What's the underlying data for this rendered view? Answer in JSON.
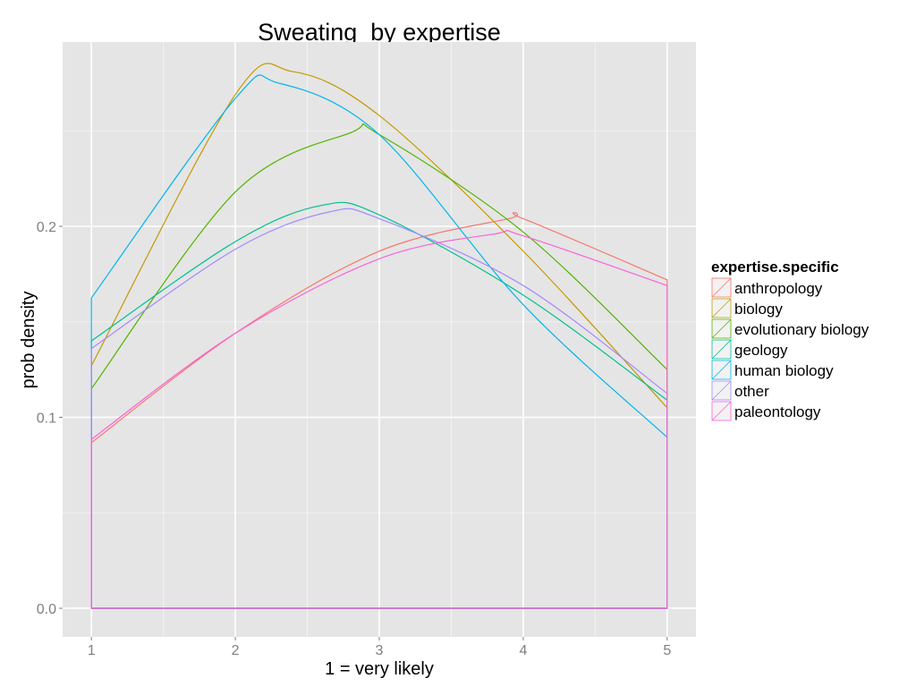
{
  "chart_data": {
    "type": "line",
    "title": "Sweating  by expertise",
    "xlabel": "1 = very likely",
    "ylabel": "prob density",
    "xlim": [
      0.8,
      5.2
    ],
    "ylim": [
      -0.015,
      0.2965
    ],
    "x_ticks": [
      1,
      2,
      3,
      4,
      5
    ],
    "x_tick_labels": [
      "1",
      "2",
      "3",
      "4",
      "5"
    ],
    "y_ticks": [
      0.0,
      0.1,
      0.2
    ],
    "y_tick_labels": [
      "0.0",
      "0.1",
      "0.2"
    ],
    "grid": true,
    "legend_title": "expertise.specific",
    "legend_position": "right",
    "series": [
      {
        "name": "anthropology",
        "color": "#F8766D",
        "x": [
          1,
          2,
          3,
          3.9,
          4,
          5
        ],
        "y": [
          0.0867,
          0.144,
          0.187,
          0.204,
          0.204,
          0.172
        ]
      },
      {
        "name": "biology",
        "color": "#C49A00",
        "x": [
          1,
          2,
          2.4,
          3,
          4,
          5
        ],
        "y": [
          0.127,
          0.269,
          0.281,
          0.258,
          0.187,
          0.105
        ]
      },
      {
        "name": "evolutionary biology",
        "color": "#53B400",
        "x": [
          1,
          2,
          2.8,
          3,
          4,
          5
        ],
        "y": [
          0.115,
          0.218,
          0.249,
          0.248,
          0.197,
          0.125
        ]
      },
      {
        "name": "geology",
        "color": "#00C094",
        "x": [
          1,
          2,
          2.6,
          3,
          4,
          5
        ],
        "y": [
          0.14,
          0.192,
          0.211,
          0.206,
          0.164,
          0.109
        ]
      },
      {
        "name": "human biology",
        "color": "#00B6EB",
        "x": [
          1,
          2,
          2.3,
          3,
          4,
          5
        ],
        "y": [
          0.1625,
          0.267,
          0.275,
          0.248,
          0.159,
          0.0895
        ]
      },
      {
        "name": "other",
        "color": "#A58AFF",
        "x": [
          1,
          2,
          2.65,
          3,
          4,
          5
        ],
        "y": [
          0.136,
          0.188,
          0.2075,
          0.204,
          0.169,
          0.1125
        ]
      },
      {
        "name": "paleontology",
        "color": "#FB61D7",
        "x": [
          1,
          2,
          3,
          3.8,
          4,
          5
        ],
        "y": [
          0.0885,
          0.144,
          0.183,
          0.196,
          0.195,
          0.169
        ]
      }
    ]
  }
}
